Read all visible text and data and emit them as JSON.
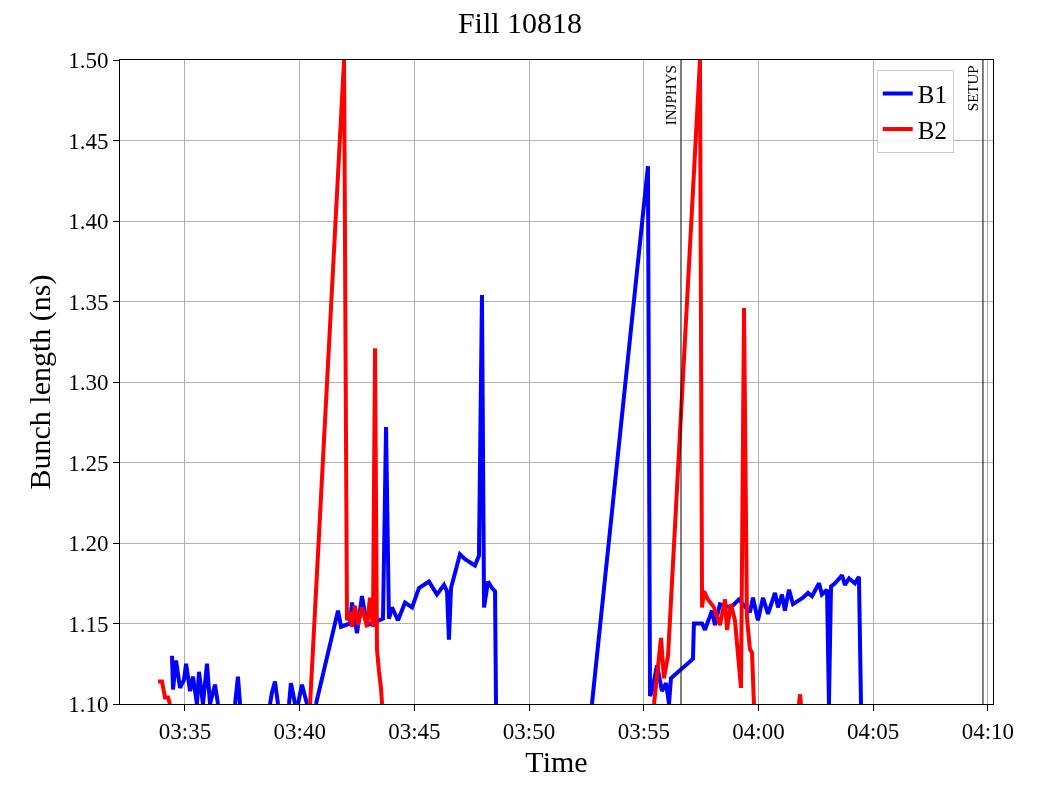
{
  "chart_data": {
    "type": "line",
    "title": "Fill 10818",
    "xlabel": "Time",
    "ylabel": "Bunch length (ns)",
    "xlim": [
      3.5361,
      4.1704
    ],
    "xticks": [
      {
        "value": 3.5833,
        "label": "03:35"
      },
      {
        "value": 3.6667,
        "label": "03:40"
      },
      {
        "value": 3.75,
        "label": "03:45"
      },
      {
        "value": 3.8333,
        "label": "03:50"
      },
      {
        "value": 3.9167,
        "label": "03:55"
      },
      {
        "value": 4.0,
        "label": "04:00"
      },
      {
        "value": 4.0833,
        "label": "04:05"
      },
      {
        "value": 4.1667,
        "label": "04:10"
      }
    ],
    "ylim": [
      1.1,
      1.5
    ],
    "yticks": [
      {
        "value": 1.1,
        "label": "1.10"
      },
      1.15,
      {
        "value": 1.2,
        "label": "1.20"
      },
      1.25,
      {
        "value": 1.3,
        "label": "1.30"
      },
      1.35,
      {
        "value": 1.4,
        "label": "1.40"
      },
      1.45,
      {
        "value": 1.5,
        "label": "1.50"
      }
    ],
    "grid": true,
    "legend": "top right",
    "line_style": "solid",
    "marker": "none",
    "ref_lines": [
      {
        "axis": "x",
        "value": 3.9437,
        "label": "INJPHYS",
        "color": "#000000"
      },
      {
        "axis": "x",
        "value": 4.1631,
        "label": "SETUP",
        "color": "#000000"
      }
    ],
    "series": [
      {
        "name": "B1",
        "color": "#0000ff",
        "x": [
          3.5739,
          3.5746,
          3.5768,
          3.5797,
          3.5826,
          3.5841,
          3.587,
          3.5891,
          3.592,
          3.5935,
          3.5964,
          3.5993,
          3.6015,
          3.6051,
          3.6073,
          3.61,
          3.6197,
          3.6218,
          3.6233,
          3.63,
          3.6451,
          3.6465,
          3.6487,
          3.6509,
          3.655,
          3.6589,
          3.6603,
          3.6633,
          3.6643,
          3.6654,
          3.6683,
          3.672,
          3.675,
          3.6785,
          3.6945,
          3.6967,
          3.7032,
          3.7047,
          3.7083,
          3.7119,
          3.7156,
          3.7272,
          3.7294,
          3.7315,
          3.7337,
          3.7381,
          3.7432,
          3.7483,
          3.7533,
          3.7606,
          3.7664,
          3.7715,
          3.7737,
          3.7751,
          3.7766,
          3.7788,
          3.7831,
          3.7868,
          3.794,
          3.7969,
          3.7991,
          3.8006,
          3.8035,
          3.8064,
          3.8086,
          3.8093,
          3.85,
          3.879,
          3.9197,
          3.9212,
          3.9226,
          3.9263,
          3.9299,
          3.9328,
          3.935,
          3.9364,
          3.9524,
          3.9531,
          3.959,
          3.9611,
          3.9662,
          3.9684,
          3.972,
          3.98,
          3.9858,
          3.9938,
          3.996,
          3.9996,
          4.0033,
          4.0069,
          4.012,
          4.0142,
          4.0171,
          4.0192,
          4.0222,
          4.0251,
          4.0323,
          4.036,
          4.0389,
          4.044,
          4.0461,
          4.0498,
          4.0512,
          4.0527,
          4.0556,
          4.0607,
          4.0628,
          4.0658,
          4.0701,
          4.073,
          4.0745
        ],
        "values": [
          1.13,
          1.109,
          1.127,
          1.11,
          1.115,
          1.125,
          1.108,
          1.117,
          1.1,
          1.12,
          1.1,
          1.125,
          1.1,
          1.112,
          1.1,
          null,
          1.1,
          1.117,
          1.1,
          null,
          1.1,
          1.107,
          1.114,
          1.1,
          null,
          1.1,
          1.113,
          1.1,
          null,
          1.1,
          1.112,
          1.1,
          null,
          1.1,
          1.158,
          1.148,
          1.15,
          1.163,
          1.144,
          1.167,
          1.149,
          1.153,
          1.272,
          1.153,
          1.16,
          1.152,
          1.163,
          1.16,
          1.172,
          1.176,
          1.168,
          1.174,
          1.17,
          1.14,
          1.172,
          1.179,
          1.193,
          1.19,
          1.186,
          1.192,
          1.354,
          1.16,
          1.176,
          1.172,
          1.17,
          1.1,
          null,
          1.1,
          1.434,
          1.105,
          1.108,
          1.124,
          1.108,
          1.113,
          1.1,
          1.116,
          1.128,
          1.15,
          1.15,
          1.146,
          1.158,
          1.149,
          1.162,
          1.16,
          1.165,
          1.157,
          1.166,
          1.152,
          1.166,
          1.156,
          1.169,
          1.16,
          1.168,
          1.158,
          1.171,
          1.162,
          1.166,
          1.169,
          1.167,
          1.175,
          1.168,
          1.171,
          1.1,
          1.173,
          1.175,
          1.18,
          1.174,
          1.178,
          1.175,
          1.179,
          1.1
        ]
      },
      {
        "name": "B2",
        "color": "#ff0000",
        "x": [
          3.5637,
          3.5666,
          3.5688,
          3.571,
          3.5724,
          3.6,
          3.6742,
          3.6989,
          3.701,
          3.7032,
          3.7047,
          3.7068,
          3.709,
          3.7119,
          3.7156,
          3.7177,
          3.7199,
          3.7214,
          3.7228,
          3.7243,
          3.7257,
          3.7265,
          3.8,
          3.9241,
          3.9292,
          3.9313,
          3.9343,
          3.9575,
          3.959,
          3.9604,
          3.9633,
          3.9677,
          3.972,
          3.9757,
          3.9771,
          3.98,
          3.9829,
          3.9873,
          3.9895,
          3.9916,
          3.9938,
          3.9953,
          3.9967,
          4.01,
          4.0294,
          4.0302,
          4.0309
        ],
        "values": [
          1.114,
          1.114,
          1.104,
          1.104,
          1.1,
          null,
          1.1,
          1.5,
          1.152,
          1.157,
          1.148,
          1.161,
          1.149,
          1.16,
          1.148,
          1.166,
          1.148,
          1.321,
          1.134,
          1.12,
          1.11,
          1.1,
          null,
          1.1,
          1.141,
          1.116,
          1.13,
          1.5,
          1.16,
          1.17,
          1.165,
          1.16,
          1.149,
          1.165,
          1.146,
          1.162,
          1.152,
          1.11,
          1.346,
          1.154,
          1.134,
          1.132,
          1.1,
          null,
          1.1,
          1.106,
          1.1
        ]
      }
    ]
  }
}
